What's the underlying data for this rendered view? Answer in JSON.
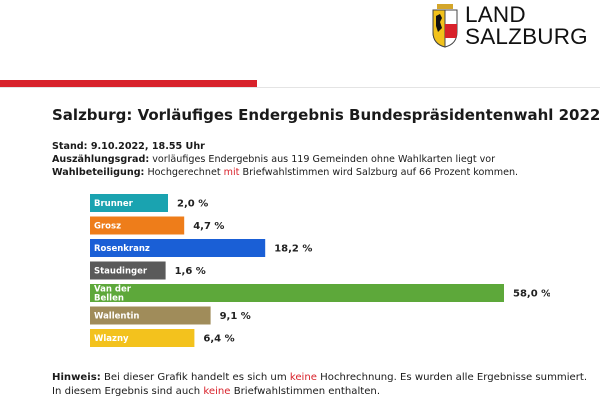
{
  "header": {
    "logo_line1": "LAND",
    "logo_line2": "SALZBURG"
  },
  "title": "Salzburg: Vorläufiges Endergebnis Bundespräsidentenwahl 2022",
  "info": {
    "stand": "Stand: 9.10.2022, 18.55 Uhr",
    "auszaehlung_label": "Auszählungsgrad:",
    "auszaehlung_text": " vorläufiges Endergebnis aus 119 Gemeinden ohne Wahlkarten liegt vor",
    "beteiligung_label": "Wahlbeteiligung:",
    "beteiligung_text_a": " Hochgerechnet ",
    "beteiligung_highlight": "mit",
    "beteiligung_text_b": " Briefwahlstimmen  wird Salzburg auf 66 Prozent kommen."
  },
  "chart_data": {
    "type": "bar",
    "orientation": "horizontal",
    "categories": [
      "Brunner",
      "Grosz",
      "Rosenkranz",
      "Staudinger",
      "Van der Bellen",
      "Wallentin",
      "Wlazny"
    ],
    "category_lines": [
      [
        "Brunner"
      ],
      [
        "Grosz"
      ],
      [
        "Rosenkranz"
      ],
      [
        "Staudinger"
      ],
      [
        "Van der",
        "Bellen"
      ],
      [
        "Wallentin"
      ],
      [
        "Wlazny"
      ]
    ],
    "values": [
      2.0,
      4.7,
      18.2,
      1.6,
      58.0,
      9.1,
      6.4
    ],
    "value_labels": [
      "2,0 %",
      "4,7 %",
      "18,2 %",
      "1,6 %",
      "58,0 %",
      "9,1 %",
      "6,4 %"
    ],
    "colors": [
      "#1aa3b0",
      "#ee7d1a",
      "#1a5fd6",
      "#5a5a5a",
      "#5da83a",
      "#a08c5a",
      "#f3c21d"
    ],
    "xlim": [
      0,
      60
    ],
    "title": "",
    "xlabel": "",
    "ylabel": "",
    "grid": false,
    "legend": "none"
  },
  "note": {
    "label": "Hinweis:",
    "a": " Bei dieser Grafik handelt es sich um ",
    "keine1": "keine",
    "b": " Hochrechnung.  Es wurden alle Ergebnisse summiert. In diesem Ergebnis sind auch ",
    "keine2": "keine",
    "c": " Briefwahlstimmen enthalten."
  }
}
